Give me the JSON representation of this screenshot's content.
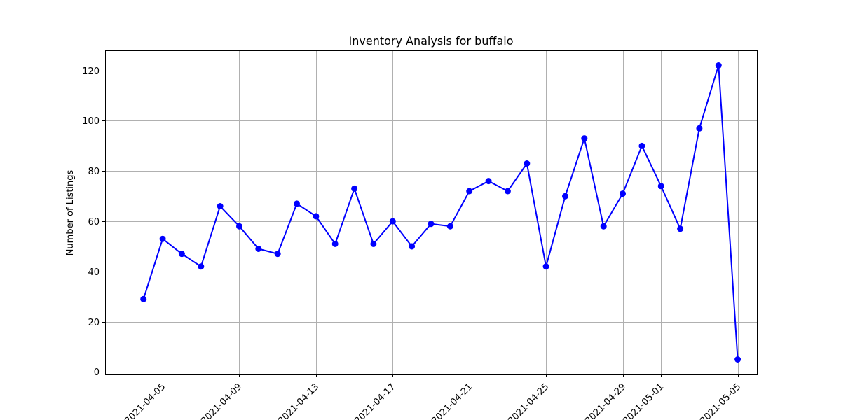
{
  "chart_data": {
    "type": "line",
    "title": "Inventory Analysis for buffalo",
    "xlabel": "",
    "ylabel": "Number of Listings",
    "grid": true,
    "color": "#0000ff",
    "x_ticks": [
      "2021-04-05",
      "2021-04-09",
      "2021-04-13",
      "2021-04-17",
      "2021-04-21",
      "2021-04-25",
      "2021-04-29",
      "2021-05-01",
      "2021-05-05"
    ],
    "y_ticks": [
      0,
      20,
      40,
      60,
      80,
      100,
      120
    ],
    "xlim": [
      "2021-04-02",
      "2021-05-06"
    ],
    "ylim": [
      -1,
      128
    ],
    "x": [
      "2021-04-04",
      "2021-04-05",
      "2021-04-06",
      "2021-04-07",
      "2021-04-08",
      "2021-04-09",
      "2021-04-10",
      "2021-04-11",
      "2021-04-12",
      "2021-04-13",
      "2021-04-14",
      "2021-04-15",
      "2021-04-16",
      "2021-04-17",
      "2021-04-18",
      "2021-04-19",
      "2021-04-20",
      "2021-04-21",
      "2021-04-22",
      "2021-04-23",
      "2021-04-24",
      "2021-04-25",
      "2021-04-26",
      "2021-04-27",
      "2021-04-28",
      "2021-04-29",
      "2021-04-30",
      "2021-05-01",
      "2021-05-02",
      "2021-05-03",
      "2021-05-04",
      "2021-05-05"
    ],
    "values": [
      29,
      53,
      47,
      42,
      66,
      58,
      49,
      47,
      67,
      62,
      51,
      73,
      51,
      60,
      50,
      59,
      58,
      72,
      76,
      72,
      83,
      42,
      70,
      93,
      58,
      71,
      90,
      74,
      57,
      97,
      122,
      5
    ]
  }
}
